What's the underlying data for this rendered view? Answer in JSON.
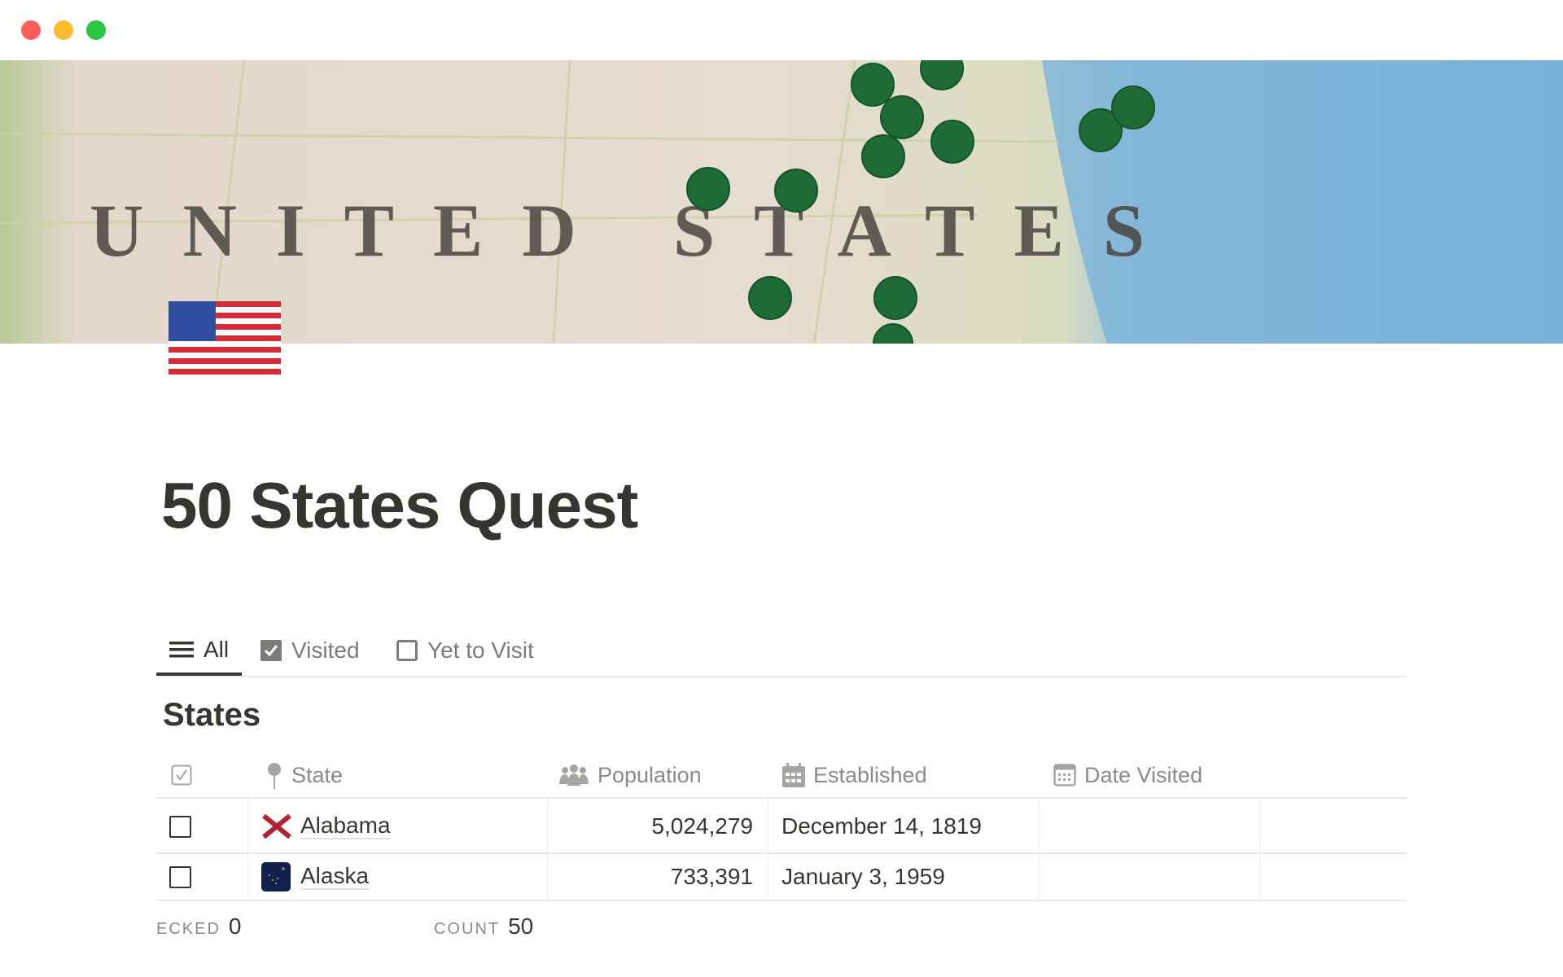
{
  "window": {
    "controls": [
      "close",
      "minimize",
      "maximize"
    ],
    "colors": {
      "close": "#ff5f57",
      "minimize": "#febc2e",
      "maximize": "#28c840"
    }
  },
  "cover": {
    "description_icon": "map-of-united-states-with-green-pins",
    "lettering": "UNITED STATES",
    "pin_color": "#1f6b36"
  },
  "page": {
    "icon": "us-flag-emoji",
    "title": "50 States Quest"
  },
  "tabs": [
    {
      "label": "All",
      "icon": "list-icon",
      "active": true
    },
    {
      "label": "Visited",
      "icon": "checked-box-icon",
      "active": false
    },
    {
      "label": "Yet to Visit",
      "icon": "empty-box-icon",
      "active": false
    }
  ],
  "database": {
    "title": "States",
    "columns": [
      {
        "label": "",
        "icon": "checkbox-icon"
      },
      {
        "label": "State",
        "icon": "pin-icon"
      },
      {
        "label": "Population",
        "icon": "people-icon"
      },
      {
        "label": "Established",
        "icon": "calendar-icon"
      },
      {
        "label": "Date Visited",
        "icon": "calendar-outline-icon"
      }
    ],
    "rows": [
      {
        "checked": false,
        "flag": "alabama-flag",
        "state": "Alabama",
        "population": "5,024,279",
        "established": "December 14, 1819",
        "date_visited": ""
      },
      {
        "checked": false,
        "flag": "alaska-flag",
        "state": "Alaska",
        "population": "733,391",
        "established": "January 3, 1959",
        "date_visited": ""
      }
    ],
    "footer": {
      "checked_label": "ECKED",
      "checked_value": "0",
      "count_label": "COUNT",
      "count_value": "50"
    }
  }
}
